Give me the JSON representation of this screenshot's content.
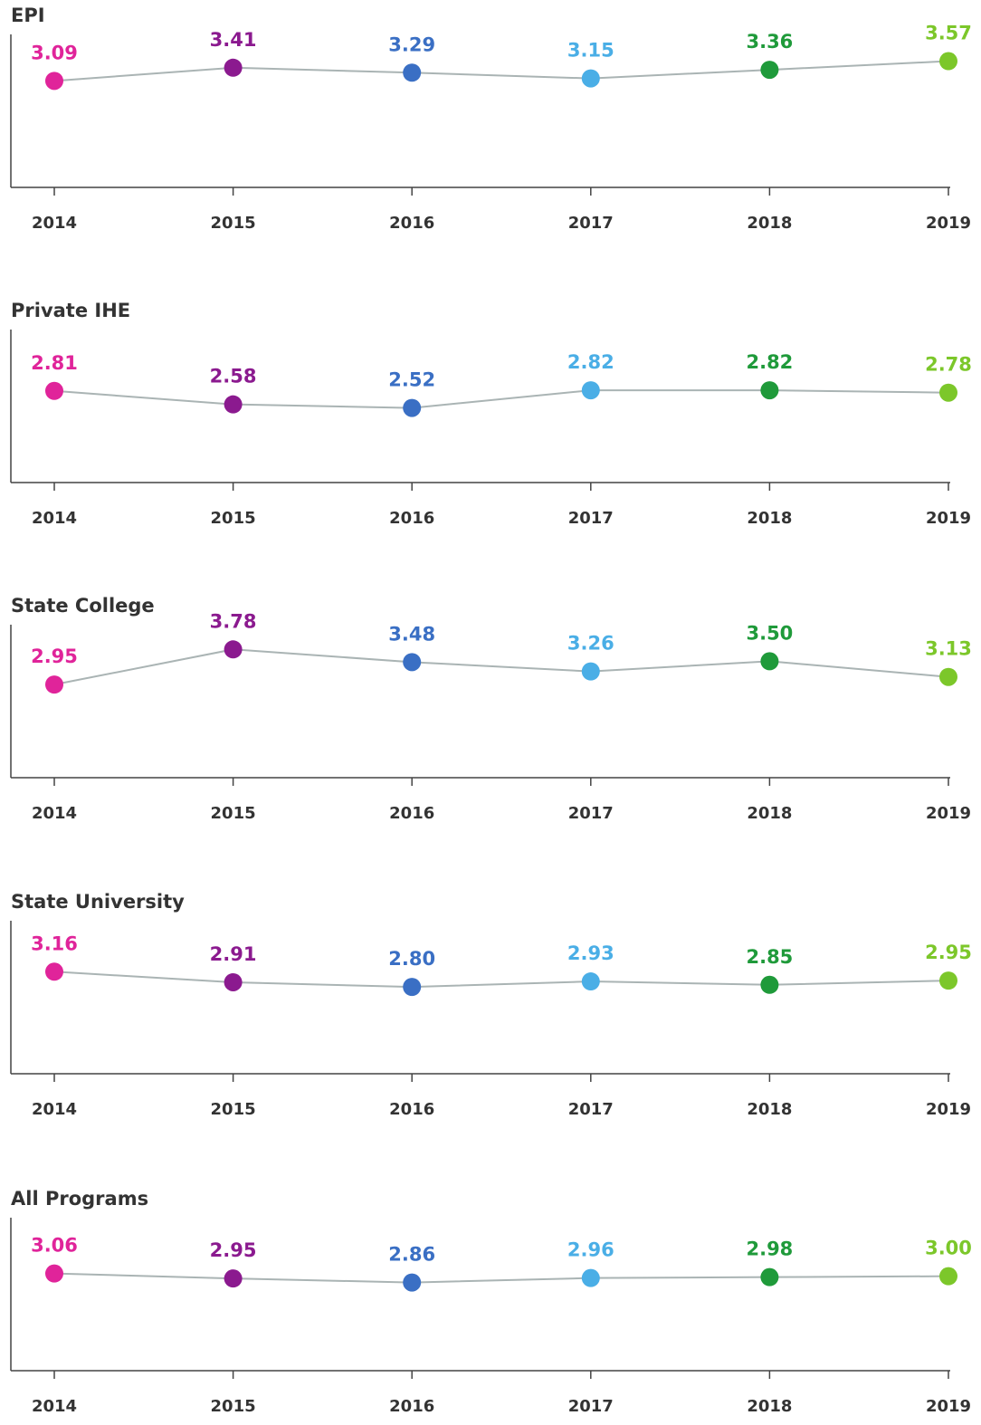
{
  "chart_data": [
    {
      "type": "line",
      "title": "EPI",
      "categories": [
        "2014",
        "2015",
        "2016",
        "2017",
        "2018",
        "2019"
      ],
      "values": [
        3.09,
        3.41,
        3.29,
        3.15,
        3.36,
        3.57
      ],
      "value_labels": [
        "3.09",
        "3.41",
        "3.29",
        "3.15",
        "3.36",
        "3.57"
      ],
      "colors": [
        "#e0249a",
        "#8b1a8f",
        "#3a6fc4",
        "#4aaee6",
        "#1f9a3a",
        "#7cc72a"
      ],
      "line_color": "#aab4b4",
      "ylim": [
        0.5,
        4
      ]
    },
    {
      "type": "line",
      "title": "Private IHE",
      "categories": [
        "2014",
        "2015",
        "2016",
        "2017",
        "2018",
        "2019"
      ],
      "values": [
        2.81,
        2.58,
        2.52,
        2.82,
        2.82,
        2.78
      ],
      "value_labels": [
        "2.81",
        "2.58",
        "2.52",
        "2.82",
        "2.82",
        "2.78"
      ],
      "colors": [
        "#e0249a",
        "#8b1a8f",
        "#3a6fc4",
        "#4aaee6",
        "#1f9a3a",
        "#7cc72a"
      ],
      "line_color": "#aab4b4",
      "ylim": [
        1.25,
        3.7
      ]
    },
    {
      "type": "line",
      "title": "State College",
      "categories": [
        "2014",
        "2015",
        "2016",
        "2017",
        "2018",
        "2019"
      ],
      "values": [
        2.95,
        3.78,
        3.48,
        3.26,
        3.5,
        3.13
      ],
      "value_labels": [
        "2.95",
        "3.78",
        "3.48",
        "3.26",
        "3.50",
        "3.13"
      ],
      "colors": [
        "#e0249a",
        "#8b1a8f",
        "#3a6fc4",
        "#4aaee6",
        "#1f9a3a",
        "#7cc72a"
      ],
      "line_color": "#aab4b4",
      "ylim": [
        0.75,
        4.15
      ]
    },
    {
      "type": "line",
      "title": "State University",
      "categories": [
        "2014",
        "2015",
        "2016",
        "2017",
        "2018",
        "2019"
      ],
      "values": [
        3.16,
        2.91,
        2.8,
        2.93,
        2.85,
        2.95
      ],
      "value_labels": [
        "3.16",
        "2.91",
        "2.80",
        "2.93",
        "2.85",
        "2.95"
      ],
      "colors": [
        "#e0249a",
        "#8b1a8f",
        "#3a6fc4",
        "#4aaee6",
        "#1f9a3a",
        "#7cc72a"
      ],
      "line_color": "#aab4b4",
      "ylim": [
        0.75,
        4.15
      ]
    },
    {
      "type": "line",
      "title": "All Programs",
      "categories": [
        "2014",
        "2015",
        "2016",
        "2017",
        "2018",
        "2019"
      ],
      "values": [
        3.06,
        2.95,
        2.86,
        2.96,
        2.98,
        3.0
      ],
      "value_labels": [
        "3.06",
        "2.95",
        "2.86",
        "2.96",
        "2.98",
        "3.00"
      ],
      "colors": [
        "#e0249a",
        "#8b1a8f",
        "#3a6fc4",
        "#4aaee6",
        "#1f9a3a",
        "#7cc72a"
      ],
      "line_color": "#aab4b4",
      "ylim": [
        0.9,
        4.1
      ]
    }
  ]
}
